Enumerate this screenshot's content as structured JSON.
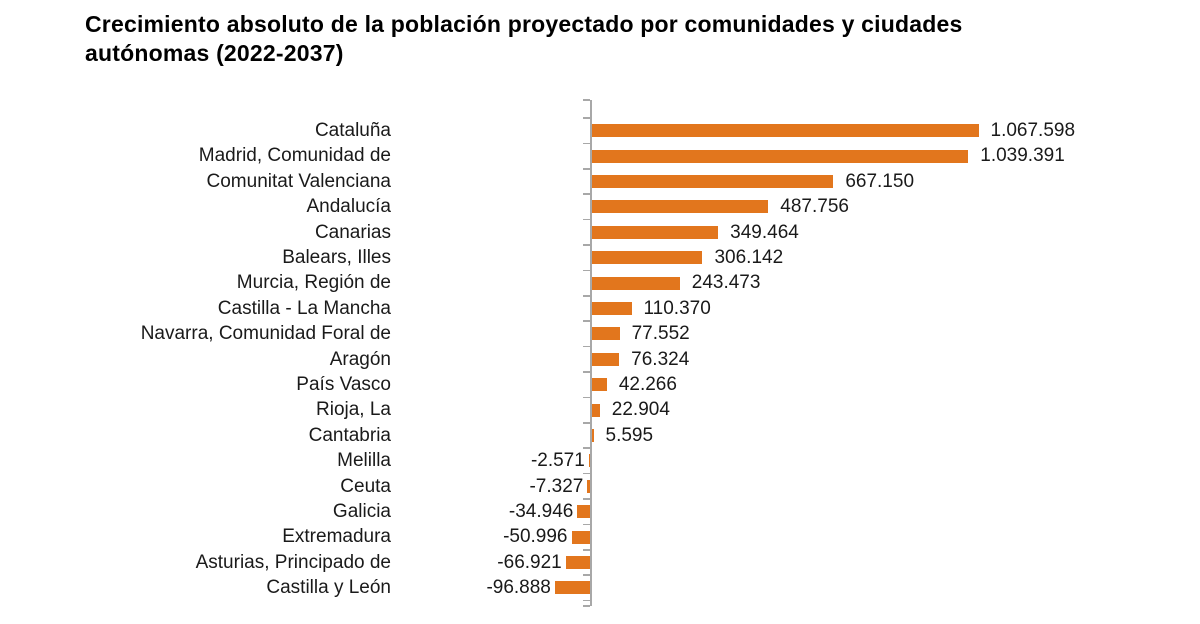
{
  "title_lines": [
    "Crecimiento absoluto de la población proyectado por comunidades y ciudades",
    "autónomas (2022-2037)"
  ],
  "chart_data": {
    "type": "bar",
    "orientation": "horizontal",
    "title": "Crecimiento absoluto de la población proyectado por comunidades y ciudades autónomas (2022-2037)",
    "xlabel": "",
    "ylabel": "",
    "xlim": [
      -150000,
      1150000
    ],
    "grid": false,
    "legend": false,
    "bar_color": "#e2761d",
    "axis_color": "#a8a8a8",
    "categories": [
      "Cataluña",
      "Madrid, Comunidad de",
      "Comunitat Valenciana",
      "Andalucía",
      "Canarias",
      "Balears, Illes",
      "Murcia, Región de",
      "Castilla - La Mancha",
      "Navarra, Comunidad Foral de",
      "Aragón",
      "País Vasco",
      "Rioja, La",
      "Cantabria",
      "Melilla",
      "Ceuta",
      "Galicia",
      "Extremadura",
      "Asturias, Principado de",
      "Castilla y León"
    ],
    "values": [
      1067598,
      1039391,
      667150,
      487756,
      349464,
      306142,
      243473,
      110370,
      77552,
      76324,
      42266,
      22904,
      5595,
      -2571,
      -7327,
      -34946,
      -50996,
      -66921,
      -96888
    ],
    "value_labels": [
      "1.067.598",
      "1.039.391",
      "667.150",
      "487.756",
      "349.464",
      "306.142",
      "243.473",
      "110.370",
      "77.552",
      "76.324",
      "42.266",
      "22.904",
      "5.595",
      "-2.571",
      "-7.327",
      "-34.946",
      "-50.996",
      "-66.921",
      "-96.888"
    ]
  }
}
